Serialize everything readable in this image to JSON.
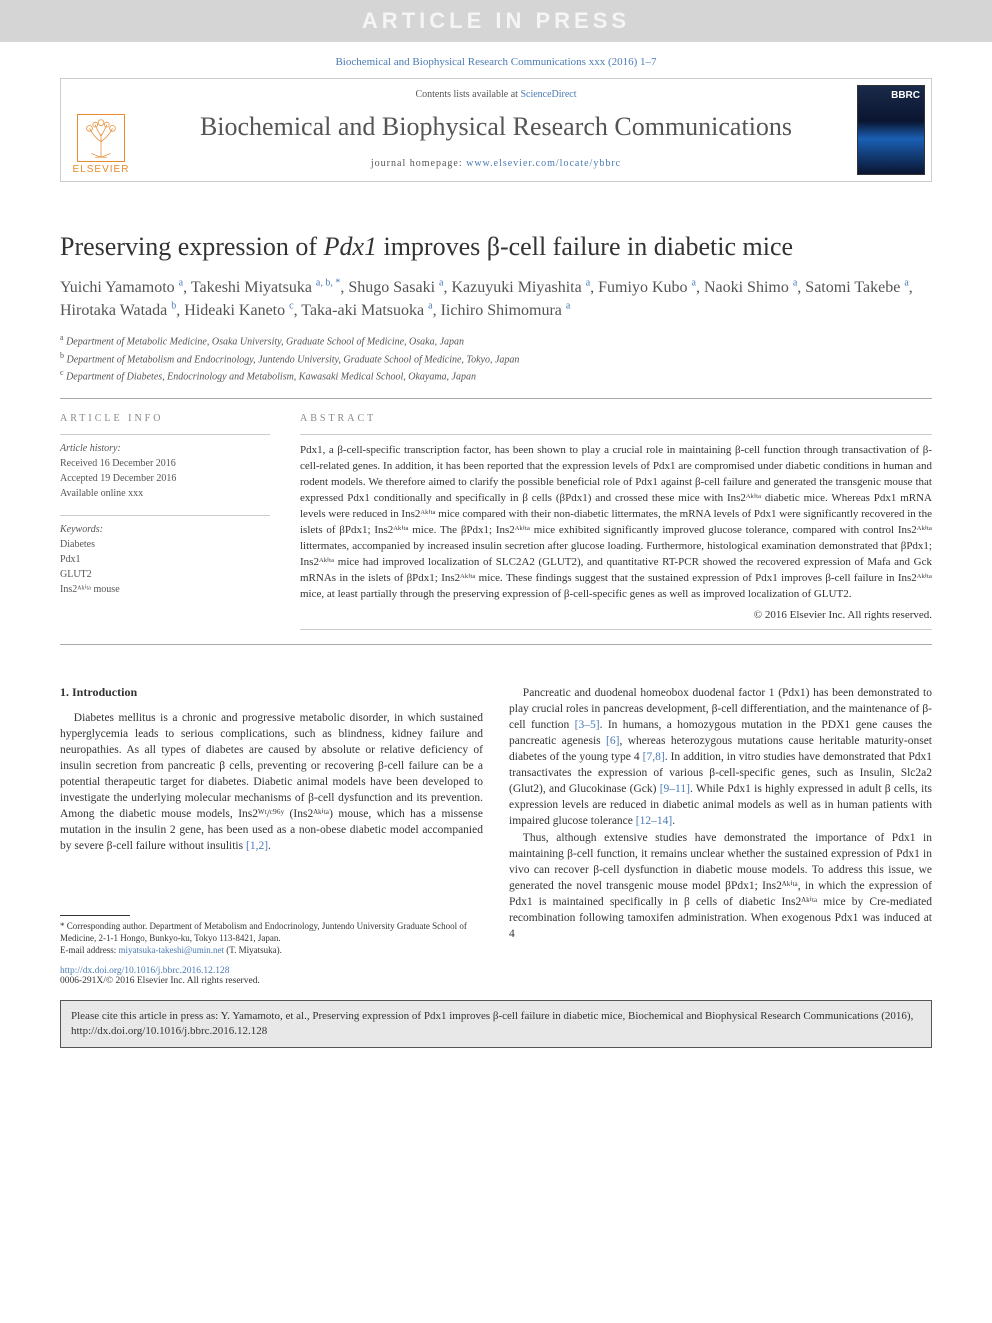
{
  "press_banner": "ARTICLE IN PRESS",
  "citation_top": "Biochemical and Biophysical Research Communications xxx (2016) 1–7",
  "header": {
    "contents_prefix": "Contents lists available at ",
    "contents_link": "ScienceDirect",
    "journal_name": "Biochemical and Biophysical Research Communications",
    "homepage_prefix": "journal homepage: ",
    "homepage_link": "www.elsevier.com/locate/ybbrc",
    "elsevier": "ELSEVIER",
    "cover_abbr": "BBRC"
  },
  "title_parts": {
    "pre": "Preserving expression of ",
    "ital": "Pdx1",
    "post": " improves β-cell failure in diabetic mice"
  },
  "authors_html": "Yuichi Yamamoto <sup>a</sup>, Takeshi Miyatsuka <sup>a, b, *</sup>, Shugo Sasaki <sup>a</sup>, Kazuyuki Miyashita <sup>a</sup>, Fumiyo Kubo <sup>a</sup>, Naoki Shimo <sup>a</sup>, Satomi Takebe <sup>a</sup>, Hirotaka Watada <sup>b</sup>, Hideaki Kaneto <sup>c</sup>, Taka-aki Matsuoka <sup>a</sup>, Iichiro Shimomura <sup>a</sup>",
  "affiliations": [
    "a Department of Metabolic Medicine, Osaka University, Graduate School of Medicine, Osaka, Japan",
    "b Department of Metabolism and Endocrinology, Juntendo University, Graduate School of Medicine, Tokyo, Japan",
    "c Department of Diabetes, Endocrinology and Metabolism, Kawasaki Medical School, Okayama, Japan"
  ],
  "meta": {
    "info_hdr": "article info",
    "history_hdr": "Article history:",
    "history": [
      "Received 16 December 2016",
      "Accepted 19 December 2016",
      "Available online xxx"
    ],
    "keywords_hdr": "Keywords:",
    "keywords": [
      "Diabetes",
      "Pdx1",
      "GLUT2",
      "Ins2ᴬᵏⁱᵗᵃ mouse"
    ]
  },
  "abstract": {
    "hdr": "abstract",
    "body": "Pdx1, a β-cell-specific transcription factor, has been shown to play a crucial role in maintaining β-cell function through transactivation of β-cell-related genes. In addition, it has been reported that the expression levels of Pdx1 are compromised under diabetic conditions in human and rodent models. We therefore aimed to clarify the possible beneficial role of Pdx1 against β-cell failure and generated the transgenic mouse that expressed Pdx1 conditionally and specifically in β cells (βPdx1) and crossed these mice with Ins2ᴬᵏⁱᵗᵃ diabetic mice. Whereas Pdx1 mRNA levels were reduced in Ins2ᴬᵏⁱᵗᵃ mice compared with their non-diabetic littermates, the mRNA levels of Pdx1 were significantly recovered in the islets of βPdx1; Ins2ᴬᵏⁱᵗᵃ mice. The βPdx1; Ins2ᴬᵏⁱᵗᵃ mice exhibited significantly improved glucose tolerance, compared with control Ins2ᴬᵏⁱᵗᵃ littermates, accompanied by increased insulin secretion after glucose loading. Furthermore, histological examination demonstrated that βPdx1; Ins2ᴬᵏⁱᵗᵃ mice had improved localization of SLC2A2 (GLUT2), and quantitative RT-PCR showed the recovered expression of Mafa and Gck mRNAs in the islets of βPdx1; Ins2ᴬᵏⁱᵗᵃ mice. These findings suggest that the sustained expression of Pdx1 improves β-cell failure in Ins2ᴬᵏⁱᵗᵃ mice, at least partially through the preserving expression of β-cell-specific genes as well as improved localization of GLUT2.",
    "copyright": "© 2016 Elsevier Inc. All rights reserved."
  },
  "body": {
    "sec1": "1. Introduction",
    "col1_p1": "Diabetes mellitus is a chronic and progressive metabolic disorder, in which sustained hyperglycemia leads to serious complications, such as blindness, kidney failure and neuropathies. As all types of diabetes are caused by absolute or relative deficiency of insulin secretion from pancreatic β cells, preventing or recovering β-cell failure can be a potential therapeutic target for diabetes. Diabetic animal models have been developed to investigate the underlying molecular mechanisms of β-cell dysfunction and its prevention. Among the diabetic mouse models, Ins2ᵂᵗ/ᶜ⁹⁶ʸ (Ins2ᴬᵏⁱᵗᵃ) mouse, which has a missense mutation in the insulin 2 gene, has been used as a non-obese diabetic model accompanied by severe β-cell failure without insulitis ",
    "col1_ref1": "[1,2]",
    "col1_p1_end": ".",
    "col2_p1": "Pancreatic and duodenal homeobox duodenal factor 1 (Pdx1) has been demonstrated to play crucial roles in pancreas development, β-cell differentiation, and the maintenance of β-cell function ",
    "col2_ref1": "[3–5]",
    "col2_p1_mid1": ". In humans, a homozygous mutation in the PDX1 gene causes the pancreatic agenesis ",
    "col2_ref2": "[6]",
    "col2_p1_mid2": ", whereas heterozygous mutations cause heritable maturity-onset diabetes of the young type 4 ",
    "col2_ref3": "[7,8]",
    "col2_p1_mid3": ". In addition, in vitro studies have demonstrated that Pdx1 transactivates the expression of various β-cell-specific genes, such as Insulin, Slc2a2 (Glut2), and Glucokinase (Gck) ",
    "col2_ref4": "[9–11]",
    "col2_p1_mid4": ". While Pdx1 is highly expressed in adult β cells, its expression levels are reduced in diabetic animal models as well as in human patients with impaired glucose tolerance ",
    "col2_ref5": "[12–14]",
    "col2_p1_end": ".",
    "col2_p2": "Thus, although extensive studies have demonstrated the importance of Pdx1 in maintaining β-cell function, it remains unclear whether the sustained expression of Pdx1 in vivo can recover β-cell dysfunction in diabetic mouse models. To address this issue, we generated the novel transgenic mouse model βPdx1; Ins2ᴬᵏⁱᵗᵃ, in which the expression of Pdx1 is maintained specifically in β cells of diabetic Ins2ᴬᵏⁱᵗᵃ mice by Cre-mediated recombination following tamoxifen administration. When exogenous Pdx1 was induced at 4"
  },
  "footnote": {
    "corr": "* Corresponding author. Department of Metabolism and Endocrinology, Juntendo University Graduate School of Medicine, 2-1-1 Hongo, Bunkyo-ku, Tokyo 113-8421, Japan.",
    "email_label": "E-mail address: ",
    "email": "miyatsuka-takeshi@umin.net",
    "email_paren": " (T. Miyatsuka)."
  },
  "doi": {
    "link": "http://dx.doi.org/10.1016/j.bbrc.2016.12.128",
    "issn": "0006-291X/© 2016 Elsevier Inc. All rights reserved."
  },
  "citebox": "Please cite this article in press as: Y. Yamamoto, et al., Preserving expression of Pdx1 improves β-cell failure in diabetic mice, Biochemical and Biophysical Research Communications (2016), http://dx.doi.org/10.1016/j.bbrc.2016.12.128",
  "style": {
    "link_color": "#4a7bb5",
    "elsevier_color": "#e78b2e",
    "border_gray": "#cccccc",
    "text_gray": "#555555",
    "banner_bg": "#d5d5d5",
    "citebox_bg": "#e8e8e8"
  }
}
